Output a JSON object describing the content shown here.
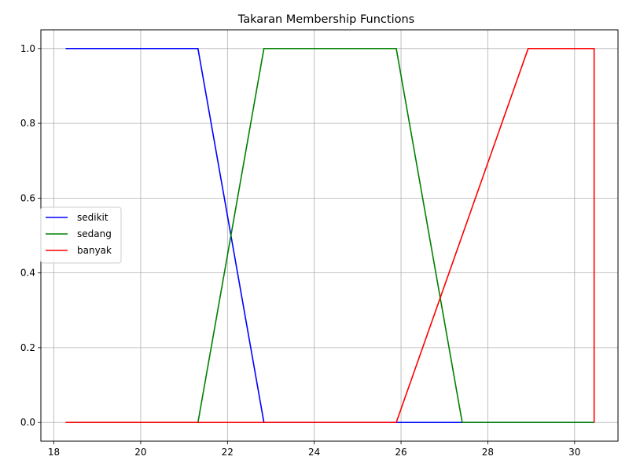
{
  "chart_data": {
    "type": "line",
    "title": "Takaran Membership Functions",
    "xlabel": "",
    "ylabel": "",
    "xlim": [
      17.7,
      31.0
    ],
    "ylim": [
      -0.05,
      1.05
    ],
    "xticks": [
      18,
      20,
      22,
      24,
      26,
      28,
      30
    ],
    "yticks": [
      0.0,
      0.2,
      0.4,
      0.6,
      0.8,
      1.0
    ],
    "xtick_labels": [
      "18",
      "20",
      "22",
      "24",
      "26",
      "28",
      "30"
    ],
    "ytick_labels": [
      "0.0",
      "0.2",
      "0.4",
      "0.6",
      "0.8",
      "1.0"
    ],
    "grid": true,
    "legend_position": "center-left",
    "series": [
      {
        "name": "sedikit",
        "color": "#0000ff",
        "x": [
          18.27,
          21.32,
          22.84,
          30.45
        ],
        "y": [
          1.0,
          1.0,
          0.0,
          0.0
        ]
      },
      {
        "name": "sedang",
        "color": "#008000",
        "x": [
          18.27,
          21.32,
          22.84,
          25.89,
          27.41,
          30.45
        ],
        "y": [
          0.0,
          0.0,
          1.0,
          1.0,
          0.0,
          0.0
        ]
      },
      {
        "name": "banyak",
        "color": "#ff0000",
        "x": [
          18.27,
          25.89,
          28.93,
          30.45,
          30.45
        ],
        "y": [
          0.0,
          0.0,
          1.0,
          1.0,
          0.0
        ]
      }
    ]
  }
}
